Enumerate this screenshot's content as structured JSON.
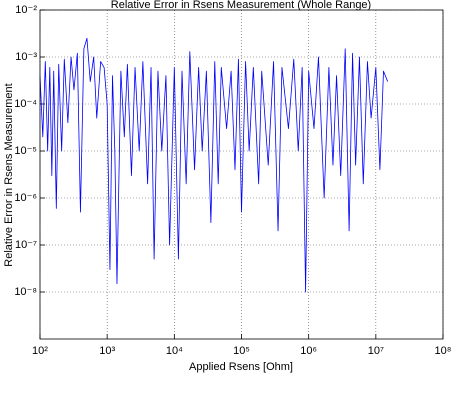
{
  "chart_data": {
    "type": "line",
    "title": "Relative Error in Rsens Measurement (Whole Range)",
    "xlabel": "Applied Rsens [Ohm]",
    "ylabel": "Relative Error in Rsens Measurement",
    "xscale": "log",
    "yscale": "log",
    "grid": true,
    "xlim": [
      100,
      100000000
    ],
    "ylim": [
      1e-09,
      0.01
    ],
    "xticks": [
      {
        "value": 100,
        "label": "10²"
      },
      {
        "value": 1000,
        "label": "10³"
      },
      {
        "value": 10000,
        "label": "10⁴"
      },
      {
        "value": 100000,
        "label": "10⁵"
      },
      {
        "value": 1000000,
        "label": "10⁶"
      },
      {
        "value": 10000000,
        "label": "10⁷"
      },
      {
        "value": 100000000,
        "label": "10⁸"
      }
    ],
    "yticks": [
      {
        "value": 0.01,
        "label": "10⁻²"
      },
      {
        "value": 0.001,
        "label": "10⁻³"
      },
      {
        "value": 0.0001,
        "label": "10⁻⁴"
      },
      {
        "value": 1e-05,
        "label": "10⁻⁵"
      },
      {
        "value": 1e-06,
        "label": "10⁻⁶"
      },
      {
        "value": 1e-07,
        "label": "10⁻⁷"
      },
      {
        "value": 1e-08,
        "label": "10⁻⁸"
      }
    ],
    "x": [
      100,
      110,
      120,
      130,
      140,
      150,
      160,
      175,
      190,
      210,
      230,
      260,
      290,
      320,
      360,
      400,
      450,
      500,
      560,
      630,
      700,
      800,
      900,
      1000,
      1100,
      1200,
      1300,
      1400,
      1600,
      1800,
      2000,
      2300,
      2600,
      3000,
      3400,
      4000,
      4500,
      5000,
      5700,
      6500,
      7500,
      8500,
      10000,
      11500,
      13000,
      15000,
      17000,
      20000,
      23000,
      26000,
      30000,
      35000,
      40000,
      45000,
      50000,
      60000,
      70000,
      80000,
      90000,
      100000,
      115000,
      130000,
      150000,
      180000,
      200000,
      250000,
      300000,
      350000,
      400000,
      500000,
      600000,
      700000,
      800000,
      900000,
      1000000,
      1200000,
      1400000,
      1700000,
      2000000,
      2300000,
      2600000,
      3000000,
      3500000,
      4000000,
      4500000,
      5000000,
      5700000,
      6500000,
      7500000,
      8500000,
      10000000,
      11500000,
      13000000,
      15000000
    ],
    "series": [
      {
        "name": "Relative error",
        "color": "#0000ff",
        "values": [
          0.0004,
          2e-05,
          0.0008,
          1e-05,
          0.0006,
          3e-06,
          0.0005,
          6e-07,
          0.0007,
          1e-05,
          0.0009,
          4e-05,
          0.001,
          0.0002,
          0.0012,
          5e-07,
          0.0015,
          0.0025,
          0.0003,
          0.001,
          5e-05,
          0.0008,
          0.0006,
          0.0001,
          3e-08,
          0.0004,
          1e-05,
          1.5e-08,
          0.0005,
          2e-05,
          0.0007,
          3e-06,
          0.0006,
          1e-05,
          0.0008,
          2e-06,
          0.0006,
          5e-08,
          0.0005,
          1e-05,
          0.0004,
          1e-07,
          0.0006,
          5e-08,
          0.0005,
          2e-06,
          0.0013,
          4e-06,
          0.0006,
          1e-05,
          0.0005,
          3e-07,
          0.0008,
          2e-06,
          0.0006,
          3e-05,
          0.0005,
          4e-06,
          0.0009,
          5e-07,
          0.0008,
          1e-05,
          0.0006,
          2e-06,
          0.0005,
          5e-06,
          0.0008,
          2e-07,
          0.0006,
          3e-05,
          0.0009,
          1e-05,
          0.0006,
          1e-08,
          0.0005,
          3e-05,
          0.001,
          1e-06,
          0.0006,
          5e-06,
          0.0004,
          3e-06,
          0.0015,
          2e-07,
          0.0012,
          5e-06,
          0.001,
          2e-06,
          0.0008,
          5e-05,
          0.0006,
          4e-06,
          0.0005,
          0.0003
        ]
      }
    ]
  }
}
